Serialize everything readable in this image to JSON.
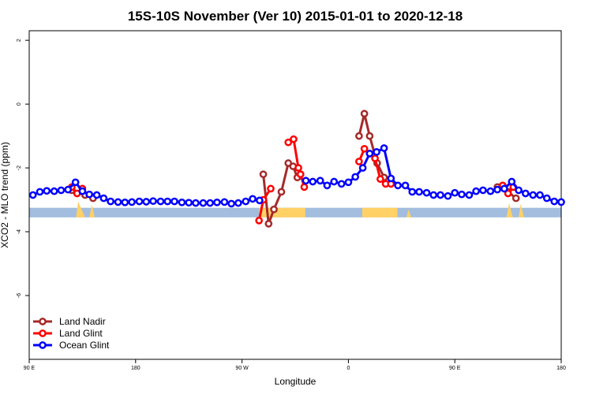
{
  "chart_data": {
    "type": "line",
    "title": "15S-10S November (Ver 10)   2015-01-01 to 2020-12-18",
    "xlabel": "Longitude",
    "ylabel": "XCO2 - MLO trend (ppm)",
    "xlim": [
      0,
      1
    ],
    "ylim": [
      -8,
      2.3
    ],
    "x_ticks": [
      {
        "pos": 0.0,
        "label": "90 E"
      },
      {
        "pos": 0.2,
        "label": "180"
      },
      {
        "pos": 0.4,
        "label": "90 W"
      },
      {
        "pos": 0.6,
        "label": "0"
      },
      {
        "pos": 0.8,
        "label": "90 E"
      },
      {
        "pos": 1.0,
        "label": "180"
      }
    ],
    "y_ticks": [
      2,
      0,
      -2,
      -4,
      -6
    ],
    "legend_position": "bottom-left",
    "colors": {
      "land_nadir": "#a52a2a",
      "land_glint": "#ff0000",
      "ocean_glint": "#0000ff",
      "ocean_band": "#a3bddf",
      "land_band": "#ffd166"
    },
    "band": {
      "y_range": [
        -3.55,
        -3.25
      ],
      "land_segments": [
        [
          0.432,
          0.519
        ],
        [
          0.626,
          0.692
        ]
      ],
      "land_spikes": [
        [
          0.088,
          0.092,
          0.105,
          -3.05
        ],
        [
          0.113,
          0.118,
          0.123,
          -3.15
        ],
        [
          0.897,
          0.902,
          0.909,
          -3.1
        ],
        [
          0.92,
          0.924,
          0.93,
          -3.12
        ],
        [
          0.709,
          0.713,
          0.718,
          -3.3
        ]
      ]
    },
    "series": [
      {
        "name": "Land Nadir",
        "key": "land_nadir",
        "points": [
          [
            0.08,
            -2.7
          ],
          [
            0.105,
            -2.85
          ],
          [
            0.12,
            -2.95
          ],
          [
            0.44,
            -2.2
          ],
          [
            0.45,
            -3.75
          ],
          [
            0.46,
            -3.3
          ],
          [
            0.474,
            -2.75
          ],
          [
            0.487,
            -1.85
          ],
          [
            0.496,
            -1.95
          ],
          [
            0.504,
            -2.3
          ],
          [
            0.51,
            -2.2
          ],
          [
            0.62,
            -1.0
          ],
          [
            0.63,
            -0.3
          ],
          [
            0.64,
            -1.0
          ],
          [
            0.654,
            -1.85
          ],
          [
            0.667,
            -2.3
          ],
          [
            0.88,
            -2.6
          ],
          [
            0.9,
            -2.75
          ],
          [
            0.915,
            -2.95
          ]
        ]
      },
      {
        "name": "Land Glint",
        "key": "land_glint",
        "points": [
          [
            0.08,
            -2.6
          ],
          [
            0.09,
            -2.8
          ],
          [
            0.1,
            -2.65
          ],
          [
            0.432,
            -3.65
          ],
          [
            0.44,
            -3.0
          ],
          [
            0.454,
            -2.65
          ],
          [
            0.487,
            -1.2
          ],
          [
            0.497,
            -1.1
          ],
          [
            0.506,
            -2.0
          ],
          [
            0.51,
            -2.2
          ],
          [
            0.517,
            -2.6
          ],
          [
            0.62,
            -1.8
          ],
          [
            0.63,
            -1.4
          ],
          [
            0.64,
            -1.55
          ],
          [
            0.65,
            -1.7
          ],
          [
            0.66,
            -2.35
          ],
          [
            0.67,
            -2.5
          ],
          [
            0.68,
            -2.5
          ],
          [
            0.89,
            -2.55
          ],
          [
            0.9,
            -2.8
          ],
          [
            0.91,
            -2.6
          ]
        ]
      },
      {
        "name": "Ocean Glint",
        "key": "ocean_glint",
        "points": [
          [
            0.007,
            -2.85
          ],
          [
            0.02,
            -2.75
          ],
          [
            0.033,
            -2.72
          ],
          [
            0.047,
            -2.73
          ],
          [
            0.06,
            -2.7
          ],
          [
            0.073,
            -2.68
          ],
          [
            0.087,
            -2.45
          ],
          [
            0.1,
            -2.73
          ],
          [
            0.113,
            -2.83
          ],
          [
            0.127,
            -2.85
          ],
          [
            0.14,
            -2.95
          ],
          [
            0.153,
            -3.05
          ],
          [
            0.167,
            -3.07
          ],
          [
            0.18,
            -3.08
          ],
          [
            0.193,
            -3.07
          ],
          [
            0.207,
            -3.05
          ],
          [
            0.22,
            -3.06
          ],
          [
            0.233,
            -3.04
          ],
          [
            0.247,
            -3.05
          ],
          [
            0.26,
            -3.05
          ],
          [
            0.273,
            -3.05
          ],
          [
            0.287,
            -3.08
          ],
          [
            0.3,
            -3.09
          ],
          [
            0.313,
            -3.1
          ],
          [
            0.327,
            -3.1
          ],
          [
            0.34,
            -3.1
          ],
          [
            0.353,
            -3.08
          ],
          [
            0.367,
            -3.07
          ],
          [
            0.38,
            -3.12
          ],
          [
            0.393,
            -3.1
          ],
          [
            0.407,
            -3.05
          ],
          [
            0.42,
            -2.97
          ],
          [
            0.433,
            -3.02
          ],
          [
            0.52,
            -2.4
          ],
          [
            0.533,
            -2.43
          ],
          [
            0.547,
            -2.4
          ],
          [
            0.56,
            -2.55
          ],
          [
            0.573,
            -2.43
          ],
          [
            0.587,
            -2.5
          ],
          [
            0.6,
            -2.45
          ],
          [
            0.613,
            -2.28
          ],
          [
            0.627,
            -2.0
          ],
          [
            0.64,
            -1.55
          ],
          [
            0.653,
            -1.5
          ],
          [
            0.667,
            -1.38
          ],
          [
            0.68,
            -2.33
          ],
          [
            0.693,
            -2.55
          ],
          [
            0.707,
            -2.55
          ],
          [
            0.72,
            -2.75
          ],
          [
            0.733,
            -2.75
          ],
          [
            0.747,
            -2.78
          ],
          [
            0.76,
            -2.85
          ],
          [
            0.773,
            -2.85
          ],
          [
            0.787,
            -2.88
          ],
          [
            0.8,
            -2.78
          ],
          [
            0.813,
            -2.83
          ],
          [
            0.827,
            -2.85
          ],
          [
            0.84,
            -2.73
          ],
          [
            0.853,
            -2.7
          ],
          [
            0.867,
            -2.73
          ],
          [
            0.88,
            -2.68
          ],
          [
            0.893,
            -2.65
          ],
          [
            0.907,
            -2.43
          ],
          [
            0.92,
            -2.7
          ],
          [
            0.933,
            -2.8
          ],
          [
            0.947,
            -2.85
          ],
          [
            0.96,
            -2.85
          ],
          [
            0.973,
            -2.95
          ],
          [
            0.987,
            -3.05
          ],
          [
            1.0,
            -3.07
          ]
        ]
      }
    ]
  }
}
